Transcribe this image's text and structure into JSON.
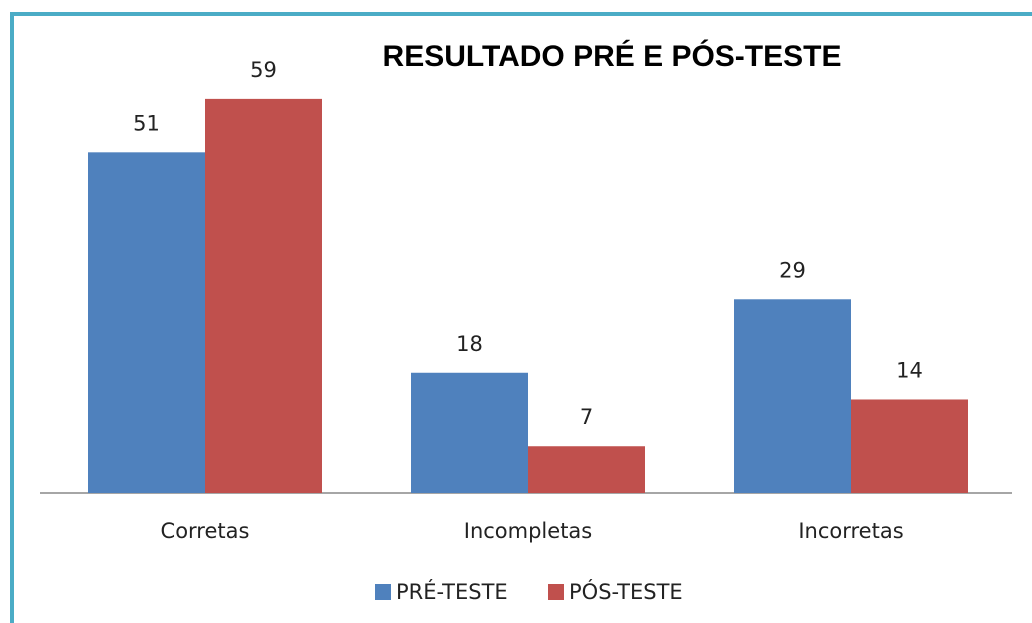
{
  "chart_data": {
    "type": "bar",
    "title": "RESULTADO  PRÉ E PÓS-TESTE",
    "categories": [
      "Corretas",
      "Incompletas",
      "Incorretas"
    ],
    "series": [
      {
        "name": "PRÉ-TESTE",
        "color": "#4f81bd",
        "values": [
          51,
          18,
          29
        ]
      },
      {
        "name": "PÓS-TESTE",
        "color": "#c0504d",
        "values": [
          59,
          7,
          14
        ]
      }
    ],
    "legend": "bottom"
  }
}
